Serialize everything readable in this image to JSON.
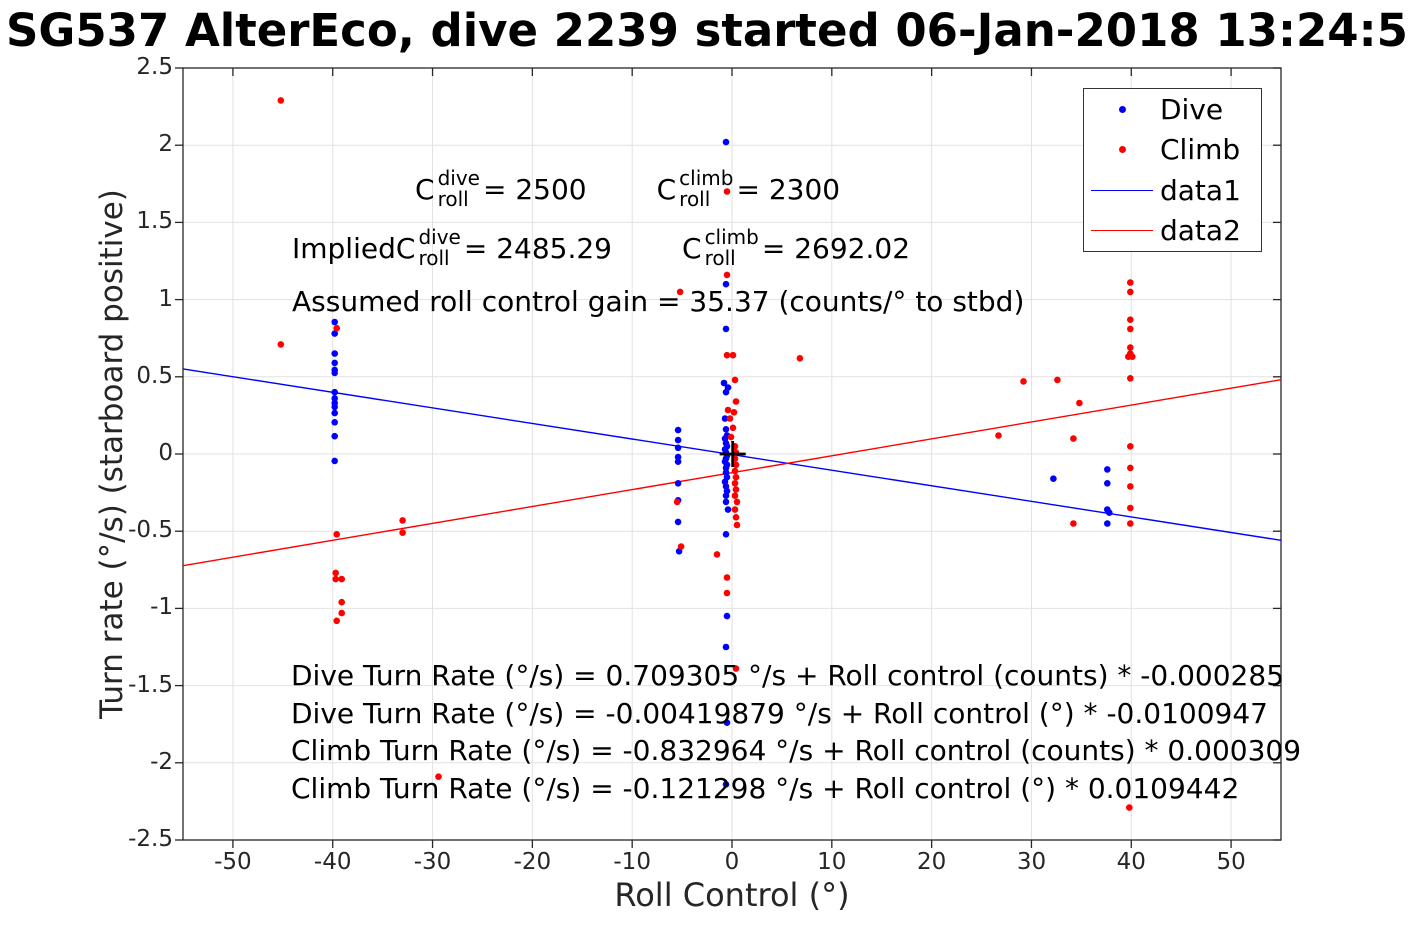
{
  "title": "SG537 AlterEco, dive 2239 started 06-Jan-2018 13:24:5",
  "annotations": {
    "c1": {
      "base": "C",
      "sup": "dive",
      "sub": "roll",
      "eq": " = 2500"
    },
    "c2": {
      "base": "C",
      "sup": "climb",
      "sub": "roll",
      "eq": " = 2300"
    },
    "implied_prefix": "Implied ",
    "c3": {
      "base": "C",
      "sup": "dive",
      "sub": "roll",
      "eq": " = 2485.29"
    },
    "c4": {
      "base": "C",
      "sup": "climb",
      "sub": "roll",
      "eq": " = 2692.02"
    },
    "gain": "Assumed roll control gain = 35.37 (counts/° to stbd)",
    "equations": [
      "Dive Turn Rate (°/s) = 0.709305 °/s + Roll control (counts) * -0.000285",
      "Dive Turn Rate (°/s) = -0.00419879 °/s + Roll control (°) * -0.0100947",
      "Climb Turn Rate (°/s) = -0.832964 °/s + Roll control (counts) * 0.000309",
      "Climb Turn Rate (°/s) = -0.121298 °/s + Roll control (°) * 0.0109442"
    ]
  },
  "legend": {
    "position": "top-right",
    "entries": [
      {
        "label": "Dive",
        "marker": "dot",
        "color": "#0000ff"
      },
      {
        "label": "Climb",
        "marker": "dot",
        "color": "#ff0000"
      },
      {
        "label": "data1",
        "marker": "line",
        "color": "#0000ff"
      },
      {
        "label": "data2",
        "marker": "line",
        "color": "#ff0000"
      }
    ]
  },
  "chart_data": {
    "type": "scatter",
    "title": "SG537 AlterEco, dive 2239 started 06-Jan-2018 13:24:5",
    "xlabel": "Roll Control (°)",
    "ylabel": "Turn rate (°/s) (starboard positive)",
    "xlim": [
      -55,
      55
    ],
    "ylim": [
      -2.5,
      2.5
    ],
    "grid": true,
    "x_ticks": [
      -50,
      -40,
      -30,
      -20,
      -10,
      0,
      10,
      20,
      30,
      40,
      50
    ],
    "y_ticks": [
      -2.5,
      -2,
      -1.5,
      -1,
      -0.5,
      0,
      0.5,
      1,
      1.5,
      2,
      2.5
    ],
    "grid_color": "#e2e2e2",
    "axis_color": "#262626",
    "origin_marker": {
      "shape": "plus",
      "color": "#000000",
      "x": 0.07,
      "y": 0.0
    },
    "series": [
      {
        "name": "Dive",
        "type": "scatter",
        "color": "#0000ff",
        "points": [
          [
            -39.8,
            0.855
          ],
          [
            -39.8,
            0.78
          ],
          [
            -39.8,
            0.65
          ],
          [
            -39.8,
            0.59
          ],
          [
            -39.8,
            0.545
          ],
          [
            -39.8,
            0.525
          ],
          [
            -39.8,
            0.4
          ],
          [
            -39.8,
            0.36
          ],
          [
            -39.8,
            0.33
          ],
          [
            -39.8,
            0.305
          ],
          [
            -39.8,
            0.265
          ],
          [
            -39.8,
            0.205
          ],
          [
            -39.8,
            0.115
          ],
          [
            -39.8,
            -0.045
          ],
          [
            -5.4,
            0.155
          ],
          [
            -5.4,
            0.09
          ],
          [
            -5.4,
            0.04
          ],
          [
            -5.4,
            -0.02
          ],
          [
            -5.4,
            -0.05
          ],
          [
            -5.4,
            -0.19
          ],
          [
            -5.4,
            -0.3
          ],
          [
            -5.4,
            -0.44
          ],
          [
            -5.3,
            -0.63
          ],
          [
            -0.6,
            2.02
          ],
          [
            -0.6,
            1.1
          ],
          [
            -0.6,
            0.81
          ],
          [
            -0.8,
            0.46
          ],
          [
            -0.4,
            0.43
          ],
          [
            -0.6,
            0.4
          ],
          [
            -0.7,
            0.23
          ],
          [
            -0.6,
            0.16
          ],
          [
            -0.5,
            0.12
          ],
          [
            -0.7,
            0.1
          ],
          [
            -0.6,
            0.07
          ],
          [
            -0.5,
            0.05
          ],
          [
            -0.7,
            0.03
          ],
          [
            -0.6,
            0.01
          ],
          [
            -0.5,
            -0.01
          ],
          [
            -0.6,
            -0.03
          ],
          [
            -0.7,
            -0.05
          ],
          [
            -0.5,
            -0.07
          ],
          [
            -0.6,
            -0.09
          ],
          [
            -0.6,
            -0.12
          ],
          [
            -0.5,
            -0.15
          ],
          [
            -0.7,
            -0.18
          ],
          [
            -0.6,
            -0.21
          ],
          [
            -0.5,
            -0.24
          ],
          [
            -0.6,
            -0.27
          ],
          [
            -0.6,
            -0.31
          ],
          [
            -0.4,
            -0.36
          ],
          [
            -0.6,
            -0.52
          ],
          [
            -0.5,
            -1.05
          ],
          [
            -0.6,
            -1.25
          ],
          [
            -0.5,
            -1.74
          ],
          [
            -0.6,
            -2.14
          ],
          [
            32.2,
            -0.16
          ],
          [
            37.6,
            -0.1
          ],
          [
            37.6,
            -0.19
          ],
          [
            37.6,
            -0.36
          ],
          [
            37.8,
            -0.38
          ],
          [
            37.6,
            -0.45
          ]
        ]
      },
      {
        "name": "Climb",
        "type": "scatter",
        "color": "#ff0000",
        "points": [
          [
            -45.2,
            2.29
          ],
          [
            -45.2,
            0.71
          ],
          [
            -39.6,
            0.815
          ],
          [
            -39.6,
            -0.52
          ],
          [
            -39.7,
            -0.77
          ],
          [
            -39.7,
            -0.81
          ],
          [
            -39.1,
            -0.81
          ],
          [
            -39.1,
            -0.96
          ],
          [
            -39.1,
            -1.03
          ],
          [
            -39.6,
            -1.08
          ],
          [
            -33.0,
            -0.43
          ],
          [
            -33.0,
            -0.51
          ],
          [
            -29.4,
            -2.09
          ],
          [
            -5.2,
            1.05
          ],
          [
            -5.5,
            -0.31
          ],
          [
            -5.1,
            -0.6
          ],
          [
            -1.5,
            -0.65
          ],
          [
            -0.5,
            1.7
          ],
          [
            -0.5,
            1.16
          ],
          [
            -0.5,
            0.64
          ],
          [
            0.1,
            0.64
          ],
          [
            0.3,
            0.48
          ],
          [
            0.4,
            0.34
          ],
          [
            -0.4,
            0.285
          ],
          [
            0.2,
            0.27
          ],
          [
            -0.2,
            0.23
          ],
          [
            0.1,
            0.17
          ],
          [
            -0.1,
            0.11
          ],
          [
            0.3,
            0.05
          ],
          [
            0.4,
            0.01
          ],
          [
            0.3,
            -0.03
          ],
          [
            0.4,
            -0.07
          ],
          [
            0.3,
            -0.11
          ],
          [
            0.4,
            -0.15
          ],
          [
            0.3,
            -0.19
          ],
          [
            0.4,
            -0.23
          ],
          [
            0.3,
            -0.27
          ],
          [
            0.5,
            -0.31
          ],
          [
            0.3,
            -0.36
          ],
          [
            0.4,
            -0.41
          ],
          [
            0.5,
            -0.46
          ],
          [
            -0.5,
            -0.8
          ],
          [
            -0.5,
            -0.9
          ],
          [
            0.4,
            -1.39
          ],
          [
            6.8,
            0.62
          ],
          [
            26.7,
            0.12
          ],
          [
            29.2,
            0.47
          ],
          [
            32.6,
            0.48
          ],
          [
            34.8,
            0.33
          ],
          [
            34.2,
            0.1
          ],
          [
            34.2,
            -0.45
          ],
          [
            39.9,
            1.11
          ],
          [
            39.9,
            1.05
          ],
          [
            39.9,
            0.87
          ],
          [
            39.9,
            0.81
          ],
          [
            39.9,
            0.69
          ],
          [
            39.9,
            0.65
          ],
          [
            39.7,
            0.63
          ],
          [
            40.1,
            0.63
          ],
          [
            39.9,
            0.49
          ],
          [
            39.9,
            0.05
          ],
          [
            39.9,
            -0.09
          ],
          [
            39.9,
            -0.21
          ],
          [
            39.9,
            -0.35
          ],
          [
            39.9,
            -0.45
          ],
          [
            39.8,
            -2.29
          ]
        ]
      },
      {
        "name": "data1",
        "type": "line",
        "color": "#0000ff",
        "points": [
          [
            -55,
            0.551
          ],
          [
            55,
            -0.559
          ]
        ]
      },
      {
        "name": "data2",
        "type": "line",
        "color": "#ff0000",
        "points": [
          [
            -55,
            -0.723
          ],
          [
            55,
            0.481
          ]
        ]
      }
    ]
  }
}
